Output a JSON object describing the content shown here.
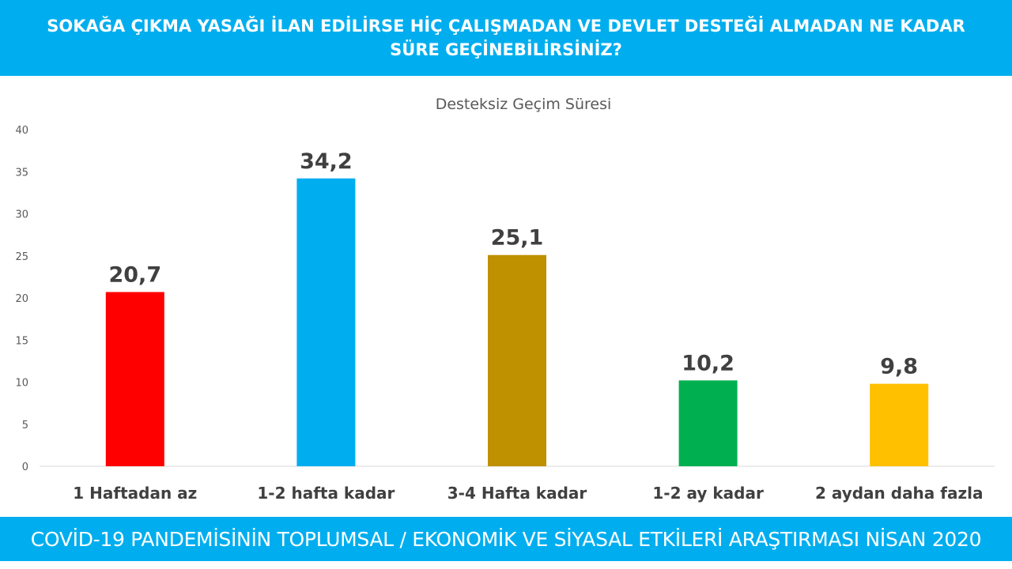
{
  "header": {
    "title": "SOKAĞA ÇIKMA YASAĞI İLAN EDİLİRSE HİÇ ÇALIŞMADAN VE DEVLET DESTEĞİ ALMADAN NE KADAR SÜRE GEÇİNEBİLİRSİNİZ?"
  },
  "footer": {
    "text": "COVİD-19 PANDEMİSİNİN TOPLUMSAL / EKONOMİK VE SİYASAL ETKİLERİ ARAŞTIRMASI NİSAN 2020"
  },
  "chart_data": {
    "type": "bar",
    "title": "Desteksiz Geçim Süresi",
    "categories": [
      "1 Haftadan az",
      "1-2 hafta kadar",
      "3-4 Hafta kadar",
      "1-2 ay kadar",
      "2 aydan daha fazla"
    ],
    "values": [
      20.7,
      34.2,
      25.1,
      10.2,
      9.8
    ],
    "value_labels": [
      "20,7",
      "34,2",
      "25,1",
      "10,2",
      "9,8"
    ],
    "colors": [
      "#ff0000",
      "#00aeef",
      "#bf9000",
      "#00b050",
      "#ffc000"
    ],
    "ylim": [
      0,
      40
    ],
    "yticks": [
      0,
      5,
      10,
      15,
      20,
      25,
      30,
      35,
      40
    ],
    "xlabel": "",
    "ylabel": "",
    "grid": false,
    "legend": "none"
  }
}
